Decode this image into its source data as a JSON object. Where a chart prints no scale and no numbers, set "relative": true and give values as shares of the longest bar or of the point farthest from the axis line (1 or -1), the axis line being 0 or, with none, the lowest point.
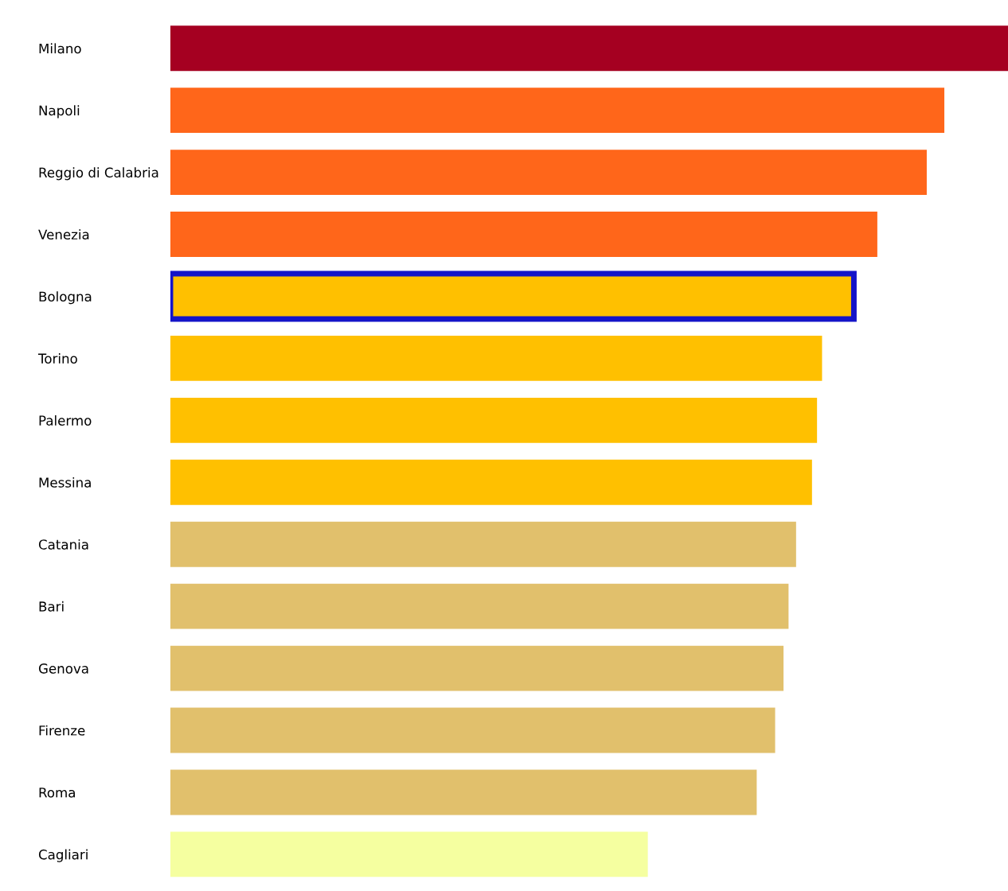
{
  "chart_data": {
    "type": "bar",
    "orientation": "horizontal",
    "relative": true,
    "categories": [
      "Milano",
      "Napoli",
      "Reggio di Calabria",
      "Venezia",
      "Bologna",
      "Torino",
      "Palermo",
      "Messina",
      "Catania",
      "Bari",
      "Genova",
      "Firenze",
      "Roma",
      "Cagliari"
    ],
    "values": [
      1,
      0.924,
      0.903,
      0.844,
      0.816,
      0.778,
      0.772,
      0.766,
      0.747,
      0.738,
      0.732,
      0.722,
      0.7,
      0.57
    ],
    "colors": [
      "#a50021",
      "#ff661a",
      "#ff661a",
      "#ff661a",
      "#ffc000",
      "#ffc000",
      "#ffc000",
      "#ffc000",
      "#e1c06c",
      "#e1c06c",
      "#e1c06c",
      "#e1c06c",
      "#e1c06c",
      "#f5ffa0"
    ],
    "grid": false,
    "legend": false
  }
}
